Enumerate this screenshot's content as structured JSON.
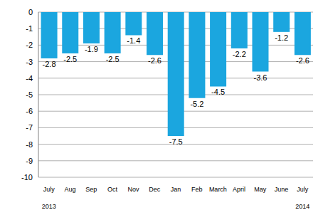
{
  "chart_data": {
    "type": "bar",
    "categories": [
      "July",
      "Aug",
      "Sep",
      "Oct",
      "Nov",
      "Dec",
      "Jan",
      "Feb",
      "March",
      "April",
      "May",
      "June",
      "July"
    ],
    "values": [
      -2.8,
      -2.5,
      -1.9,
      -2.5,
      -1.4,
      -2.6,
      -7.5,
      -5.2,
      -4.5,
      -2.2,
      -3.6,
      -1.2,
      -2.6
    ],
    "color": "#1ba6df",
    "ylim": [
      -10,
      0
    ],
    "yticks": [
      0,
      -1,
      -2,
      -3,
      -4,
      -5,
      -6,
      -7,
      -8,
      -9,
      -10
    ],
    "grid": true,
    "data_labels": true,
    "annotations": [
      {
        "text": "2013",
        "x": 0
      },
      {
        "text": "2014",
        "x": 12
      }
    ]
  }
}
